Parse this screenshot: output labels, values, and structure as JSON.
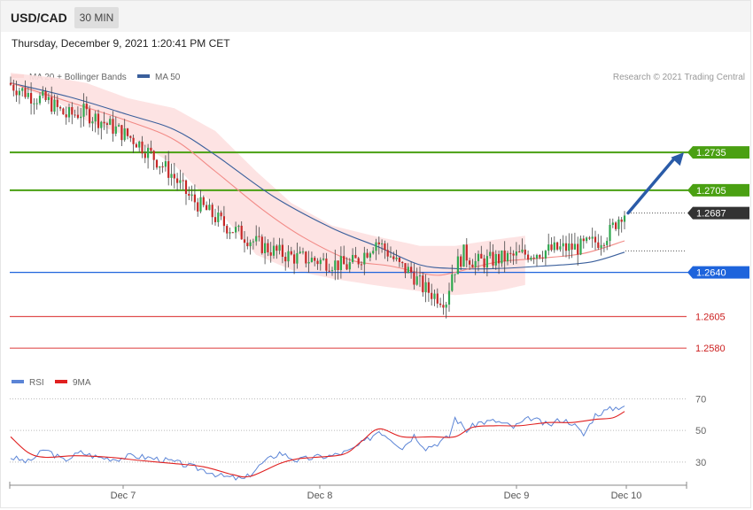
{
  "header": {
    "symbol": "USD/CAD",
    "timeframe": "30 MIN",
    "timestamp": "Thursday, December 9, 2021 1:20:41 PM CET"
  },
  "legend": [
    {
      "label": "MA 20 + Bollinger Bands",
      "color": "#f28a86"
    },
    {
      "label": "MA 50",
      "color": "#3a5f9c"
    }
  ],
  "rsi_legend": [
    {
      "label": "RSI",
      "color": "#5b84d6"
    },
    {
      "label": "9MA",
      "color": "#e02020"
    }
  ],
  "credit": "Research © 2021 Trading Central",
  "colors": {
    "bull": "#2fa84f",
    "bear": "#c62828",
    "resistance": "#4aa012",
    "support_blue": "#1e64dc",
    "support_red": "#e05050",
    "last": "#333333",
    "arrow": "#2a5ba8",
    "bands": "#fde0e0"
  },
  "chart_data": {
    "type": "candlestick",
    "x_ticks": [
      "Dec 7",
      "Dec 8",
      "Dec 9",
      "Dec 10"
    ],
    "ylim": [
      1.2564,
      1.2787
    ],
    "levels": [
      {
        "value": 1.2735,
        "label": "1.2735",
        "kind": "resistance",
        "badge": true
      },
      {
        "value": 1.2705,
        "label": "1.2705",
        "kind": "resistance",
        "badge": true
      },
      {
        "value": 1.2687,
        "label": "1.2687",
        "kind": "last",
        "badge": true
      },
      {
        "value": 1.264,
        "label": "1.2640",
        "kind": "support_blue",
        "badge": true
      },
      {
        "value": 1.2605,
        "label": "1.2605",
        "kind": "support_red",
        "badge": false
      },
      {
        "value": 1.258,
        "label": "1.2580",
        "kind": "support_red",
        "badge": false
      }
    ],
    "keypoints": [
      [
        0,
        1.279
      ],
      [
        8,
        1.278
      ],
      [
        14,
        1.2775
      ],
      [
        20,
        1.2764
      ],
      [
        26,
        1.2767
      ],
      [
        32,
        1.276
      ],
      [
        38,
        1.2752
      ],
      [
        44,
        1.2744
      ],
      [
        50,
        1.2731
      ],
      [
        56,
        1.2718
      ],
      [
        62,
        1.27
      ],
      [
        68,
        1.2689
      ],
      [
        74,
        1.2678
      ],
      [
        80,
        1.267
      ],
      [
        86,
        1.2662
      ],
      [
        92,
        1.2656
      ],
      [
        98,
        1.2652
      ],
      [
        104,
        1.265
      ],
      [
        110,
        1.2648
      ],
      [
        116,
        1.2645
      ],
      [
        120,
        1.265
      ],
      [
        124,
        1.266
      ],
      [
        126,
        1.2665
      ],
      [
        130,
        1.2656
      ],
      [
        134,
        1.2645
      ],
      [
        138,
        1.264
      ],
      [
        142,
        1.2628
      ],
      [
        146,
        1.2622
      ],
      [
        150,
        1.2618
      ],
      [
        152,
        1.264
      ],
      [
        156,
        1.2655
      ],
      [
        160,
        1.2648
      ],
      [
        166,
        1.265
      ],
      [
        172,
        1.2652
      ],
      [
        178,
        1.2655
      ],
      [
        184,
        1.2657
      ],
      [
        190,
        1.2659
      ],
      [
        196,
        1.266
      ],
      [
        202,
        1.2665
      ],
      [
        206,
        1.2672
      ],
      [
        210,
        1.2687
      ]
    ],
    "ma20": [
      [
        0,
        1.279
      ],
      [
        20,
        1.2775
      ],
      [
        40,
        1.276
      ],
      [
        56,
        1.2745
      ],
      [
        70,
        1.272
      ],
      [
        86,
        1.269
      ],
      [
        100,
        1.2668
      ],
      [
        116,
        1.265
      ],
      [
        130,
        1.2645
      ],
      [
        144,
        1.2638
      ],
      [
        152,
        1.264
      ],
      [
        166,
        1.2648
      ],
      [
        180,
        1.2651
      ],
      [
        196,
        1.2655
      ],
      [
        210,
        1.2665
      ]
    ],
    "ma50": [
      [
        0,
        1.279
      ],
      [
        20,
        1.2779
      ],
      [
        40,
        1.2765
      ],
      [
        56,
        1.2753
      ],
      [
        70,
        1.2733
      ],
      [
        90,
        1.27
      ],
      [
        110,
        1.2675
      ],
      [
        126,
        1.266
      ],
      [
        140,
        1.2646
      ],
      [
        152,
        1.2643
      ],
      [
        166,
        1.2643
      ],
      [
        182,
        1.2645
      ],
      [
        198,
        1.2648
      ],
      [
        210,
        1.2656
      ]
    ],
    "bollinger": {
      "upper": [
        [
          0,
          1.2798
        ],
        [
          16,
          1.2794
        ],
        [
          26,
          1.279
        ],
        [
          40,
          1.2778
        ],
        [
          56,
          1.277
        ],
        [
          70,
          1.2752
        ],
        [
          84,
          1.272
        ],
        [
          96,
          1.2695
        ],
        [
          110,
          1.2677
        ],
        [
          124,
          1.2669
        ],
        [
          140,
          1.2661
        ],
        [
          152,
          1.2661
        ],
        [
          166,
          1.2666
        ],
        [
          176,
          1.2669
        ]
      ],
      "lower": [
        [
          0,
          1.279
        ],
        [
          16,
          1.2775
        ],
        [
          26,
          1.276
        ],
        [
          40,
          1.2748
        ],
        [
          56,
          1.2725
        ],
        [
          70,
          1.2692
        ],
        [
          84,
          1.2654
        ],
        [
          96,
          1.2642
        ],
        [
          110,
          1.2635
        ],
        [
          124,
          1.263
        ],
        [
          140,
          1.2625
        ],
        [
          152,
          1.2622
        ],
        [
          166,
          1.2625
        ],
        [
          176,
          1.263
        ]
      ]
    },
    "arrow": {
      "from_value": 1.2687,
      "to_value": 1.2735
    },
    "rsi": {
      "ylim": [
        17,
        77
      ],
      "levels": [
        70,
        50,
        30
      ],
      "rsi": [
        [
          0,
          33
        ],
        [
          6,
          30
        ],
        [
          12,
          38
        ],
        [
          18,
          31
        ],
        [
          24,
          36
        ],
        [
          30,
          33
        ],
        [
          36,
          32
        ],
        [
          42,
          34
        ],
        [
          50,
          32
        ],
        [
          56,
          30
        ],
        [
          62,
          27
        ],
        [
          68,
          24
        ],
        [
          72,
          21
        ],
        [
          76,
          20
        ],
        [
          80,
          19
        ],
        [
          86,
          29
        ],
        [
          92,
          36
        ],
        [
          98,
          31
        ],
        [
          104,
          33
        ],
        [
          110,
          34
        ],
        [
          116,
          37
        ],
        [
          122,
          44
        ],
        [
          126,
          50
        ],
        [
          130,
          45
        ],
        [
          134,
          39
        ],
        [
          138,
          47
        ],
        [
          142,
          39
        ],
        [
          146,
          42
        ],
        [
          150,
          46
        ],
        [
          152,
          58
        ],
        [
          156,
          50
        ],
        [
          160,
          55
        ],
        [
          166,
          56
        ],
        [
          172,
          52
        ],
        [
          178,
          58
        ],
        [
          184,
          53
        ],
        [
          188,
          57
        ],
        [
          192,
          55
        ],
        [
          196,
          47
        ],
        [
          200,
          60
        ],
        [
          206,
          64
        ],
        [
          210,
          66
        ]
      ],
      "ma9": [
        [
          0,
          46
        ],
        [
          6,
          36
        ],
        [
          12,
          33
        ],
        [
          22,
          34
        ],
        [
          34,
          33
        ],
        [
          44,
          31
        ],
        [
          56,
          29
        ],
        [
          66,
          27
        ],
        [
          76,
          22
        ],
        [
          82,
          21
        ],
        [
          92,
          29
        ],
        [
          98,
          32
        ],
        [
          104,
          33
        ],
        [
          114,
          35
        ],
        [
          120,
          43
        ],
        [
          126,
          51
        ],
        [
          134,
          46
        ],
        [
          144,
          46
        ],
        [
          152,
          46
        ],
        [
          158,
          52
        ],
        [
          166,
          53
        ],
        [
          174,
          53
        ],
        [
          184,
          55
        ],
        [
          192,
          55
        ],
        [
          200,
          57
        ],
        [
          206,
          58
        ],
        [
          210,
          62
        ]
      ]
    }
  }
}
